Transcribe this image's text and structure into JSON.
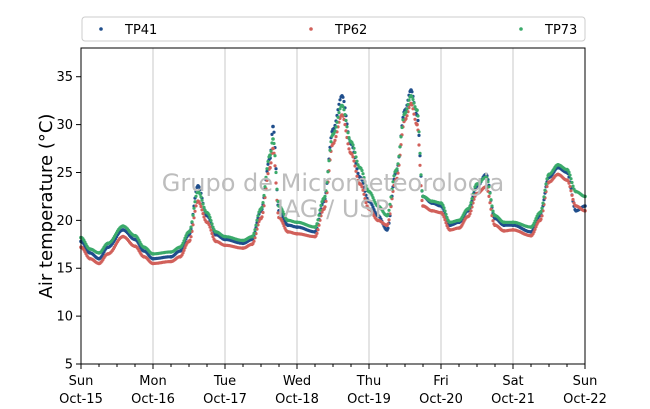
{
  "watermark": {
    "line1": "Grupo de Micrometeorologia",
    "line2": "IAG / USP"
  },
  "chart_data": {
    "type": "scatter",
    "ylabel": "Air temperature (°C)",
    "ylim": [
      5,
      38
    ],
    "yticks": [
      5,
      10,
      15,
      20,
      25,
      30,
      35
    ],
    "xlim": [
      "2017-10-15 00:00",
      "2017-10-22 00:00"
    ],
    "xticks": [
      {
        "day": "Sun",
        "date": "Oct-15"
      },
      {
        "day": "Mon",
        "date": "Oct-16"
      },
      {
        "day": "Tue",
        "date": "Oct-17"
      },
      {
        "day": "Wed",
        "date": "Oct-18"
      },
      {
        "day": "Thu",
        "date": "Oct-19"
      },
      {
        "day": "Fri",
        "date": "Oct-20"
      },
      {
        "day": "Sat",
        "date": "Oct-21"
      },
      {
        "day": "Sun",
        "date": "Oct-22"
      }
    ],
    "grid": "vertical",
    "legend": "top",
    "series": [
      {
        "name": "TP41",
        "color": "#1f4e8c",
        "points": [
          [
            "2017-10-15 00:00",
            17.8
          ],
          [
            "2017-10-15 03:00",
            16.6
          ],
          [
            "2017-10-15 06:00",
            16.0
          ],
          [
            "2017-10-15 09:00",
            17.2
          ],
          [
            "2017-10-15 14:00",
            19.0
          ],
          [
            "2017-10-15 18:00",
            18.0
          ],
          [
            "2017-10-15 21:00",
            16.8
          ],
          [
            "2017-10-16 00:00",
            16.0
          ],
          [
            "2017-10-16 06:00",
            16.2
          ],
          [
            "2017-10-16 09:00",
            16.8
          ],
          [
            "2017-10-16 12:00",
            18.5
          ],
          [
            "2017-10-16 15:00",
            23.6
          ],
          [
            "2017-10-16 18:00",
            20.5
          ],
          [
            "2017-10-16 21:00",
            18.5
          ],
          [
            "2017-10-17 00:00",
            18.0
          ],
          [
            "2017-10-17 06:00",
            17.6
          ],
          [
            "2017-10-17 09:00",
            18.0
          ],
          [
            "2017-10-17 12:00",
            21.0
          ],
          [
            "2017-10-17 15:00",
            26.5
          ],
          [
            "2017-10-17 16:00",
            29.8
          ],
          [
            "2017-10-17 18:00",
            21.0
          ],
          [
            "2017-10-17 21:00",
            19.5
          ],
          [
            "2017-10-18 00:00",
            19.3
          ],
          [
            "2017-10-18 06:00",
            18.8
          ],
          [
            "2017-10-18 09:00",
            22.0
          ],
          [
            "2017-10-18 12:00",
            29.5
          ],
          [
            "2017-10-18 15:00",
            33.0
          ],
          [
            "2017-10-18 18:00",
            28.0
          ],
          [
            "2017-10-18 21:00",
            24.5
          ],
          [
            "2017-10-19 00:00",
            22.0
          ],
          [
            "2017-10-19 03:00",
            20.5
          ],
          [
            "2017-10-19 06:00",
            19.0
          ],
          [
            "2017-10-19 09:00",
            25.0
          ],
          [
            "2017-10-19 12:00",
            31.5
          ],
          [
            "2017-10-19 14:00",
            33.6
          ],
          [
            "2017-10-19 16:00",
            31.0
          ],
          [
            "2017-10-19 18:00",
            22.5
          ],
          [
            "2017-10-19 21:00",
            21.8
          ],
          [
            "2017-10-20 00:00",
            21.5
          ],
          [
            "2017-10-20 03:00",
            19.5
          ],
          [
            "2017-10-20 06:00",
            19.8
          ],
          [
            "2017-10-20 09:00",
            21.0
          ],
          [
            "2017-10-20 12:00",
            23.5
          ],
          [
            "2017-10-20 15:00",
            24.8
          ],
          [
            "2017-10-20 18:00",
            20.2
          ],
          [
            "2017-10-20 21:00",
            19.5
          ],
          [
            "2017-10-21 00:00",
            19.5
          ],
          [
            "2017-10-21 06:00",
            18.8
          ],
          [
            "2017-10-21 09:00",
            20.5
          ],
          [
            "2017-10-21 12:00",
            24.5
          ],
          [
            "2017-10-21 15:00",
            25.5
          ],
          [
            "2017-10-21 18:00",
            25.0
          ],
          [
            "2017-10-21 21:00",
            21.0
          ],
          [
            "2017-10-22 00:00",
            21.5
          ]
        ]
      },
      {
        "name": "TP62",
        "color": "#d1605a",
        "points": [
          [
            "2017-10-15 00:00",
            17.2
          ],
          [
            "2017-10-15 03:00",
            16.0
          ],
          [
            "2017-10-15 06:00",
            15.5
          ],
          [
            "2017-10-15 09:00",
            16.5
          ],
          [
            "2017-10-15 14:00",
            18.3
          ],
          [
            "2017-10-15 18:00",
            17.3
          ],
          [
            "2017-10-15 21:00",
            16.2
          ],
          [
            "2017-10-16 00:00",
            15.5
          ],
          [
            "2017-10-16 06:00",
            15.7
          ],
          [
            "2017-10-16 09:00",
            16.2
          ],
          [
            "2017-10-16 12:00",
            17.8
          ],
          [
            "2017-10-16 15:00",
            22.0
          ],
          [
            "2017-10-16 18:00",
            19.8
          ],
          [
            "2017-10-16 21:00",
            17.8
          ],
          [
            "2017-10-17 00:00",
            17.4
          ],
          [
            "2017-10-17 06:00",
            17.1
          ],
          [
            "2017-10-17 09:00",
            17.5
          ],
          [
            "2017-10-17 12:00",
            20.2
          ],
          [
            "2017-10-17 15:00",
            25.5
          ],
          [
            "2017-10-17 16:00",
            27.5
          ],
          [
            "2017-10-17 18:00",
            20.3
          ],
          [
            "2017-10-17 21:00",
            18.8
          ],
          [
            "2017-10-18 00:00",
            18.6
          ],
          [
            "2017-10-18 06:00",
            18.3
          ],
          [
            "2017-10-18 09:00",
            21.2
          ],
          [
            "2017-10-18 12:00",
            28.0
          ],
          [
            "2017-10-18 15:00",
            31.0
          ],
          [
            "2017-10-18 18:00",
            27.0
          ],
          [
            "2017-10-18 21:00",
            23.8
          ],
          [
            "2017-10-19 00:00",
            21.2
          ],
          [
            "2017-10-19 03:00",
            20.0
          ],
          [
            "2017-10-19 06:00",
            19.5
          ],
          [
            "2017-10-19 09:00",
            24.2
          ],
          [
            "2017-10-19 12:00",
            30.5
          ],
          [
            "2017-10-19 14:00",
            32.2
          ],
          [
            "2017-10-19 16:00",
            30.0
          ],
          [
            "2017-10-19 18:00",
            21.5
          ],
          [
            "2017-10-19 21:00",
            21.0
          ],
          [
            "2017-10-20 00:00",
            20.8
          ],
          [
            "2017-10-20 03:00",
            19.0
          ],
          [
            "2017-10-20 06:00",
            19.2
          ],
          [
            "2017-10-20 09:00",
            20.4
          ],
          [
            "2017-10-20 12:00",
            22.8
          ],
          [
            "2017-10-20 15:00",
            23.5
          ],
          [
            "2017-10-20 18:00",
            19.5
          ],
          [
            "2017-10-20 21:00",
            18.9
          ],
          [
            "2017-10-21 00:00",
            19.0
          ],
          [
            "2017-10-21 06:00",
            18.4
          ],
          [
            "2017-10-21 09:00",
            20.0
          ],
          [
            "2017-10-21 12:00",
            24.0
          ],
          [
            "2017-10-21 15:00",
            24.8
          ],
          [
            "2017-10-21 18:00",
            24.2
          ],
          [
            "2017-10-21 21:00",
            21.5
          ],
          [
            "2017-10-22 00:00",
            21.0
          ]
        ]
      },
      {
        "name": "TP73",
        "color": "#3aaa6a",
        "points": [
          [
            "2017-10-15 00:00",
            18.2
          ],
          [
            "2017-10-15 03:00",
            17.0
          ],
          [
            "2017-10-15 06:00",
            16.6
          ],
          [
            "2017-10-15 09:00",
            17.6
          ],
          [
            "2017-10-15 14:00",
            19.4
          ],
          [
            "2017-10-15 18:00",
            18.4
          ],
          [
            "2017-10-15 21:00",
            17.2
          ],
          [
            "2017-10-16 00:00",
            16.5
          ],
          [
            "2017-10-16 06:00",
            16.7
          ],
          [
            "2017-10-16 09:00",
            17.2
          ],
          [
            "2017-10-16 12:00",
            18.8
          ],
          [
            "2017-10-16 15:00",
            23.0
          ],
          [
            "2017-10-16 18:00",
            20.8
          ],
          [
            "2017-10-16 21:00",
            18.8
          ],
          [
            "2017-10-17 00:00",
            18.3
          ],
          [
            "2017-10-17 06:00",
            17.9
          ],
          [
            "2017-10-17 09:00",
            18.3
          ],
          [
            "2017-10-17 12:00",
            21.2
          ],
          [
            "2017-10-17 15:00",
            26.8
          ],
          [
            "2017-10-17 16:00",
            28.5
          ],
          [
            "2017-10-17 18:00",
            21.5
          ],
          [
            "2017-10-17 21:00",
            20.0
          ],
          [
            "2017-10-18 00:00",
            19.8
          ],
          [
            "2017-10-18 06:00",
            19.3
          ],
          [
            "2017-10-18 09:00",
            22.3
          ],
          [
            "2017-10-18 12:00",
            29.0
          ],
          [
            "2017-10-18 15:00",
            32.0
          ],
          [
            "2017-10-18 18:00",
            28.2
          ],
          [
            "2017-10-18 21:00",
            25.5
          ],
          [
            "2017-10-19 00:00",
            23.0
          ],
          [
            "2017-10-19 03:00",
            21.5
          ],
          [
            "2017-10-19 06:00",
            20.5
          ],
          [
            "2017-10-19 09:00",
            25.2
          ],
          [
            "2017-10-19 12:00",
            31.2
          ],
          [
            "2017-10-19 14:00",
            33.0
          ],
          [
            "2017-10-19 16:00",
            31.5
          ],
          [
            "2017-10-19 18:00",
            22.5
          ],
          [
            "2017-10-19 21:00",
            22.0
          ],
          [
            "2017-10-20 00:00",
            21.8
          ],
          [
            "2017-10-20 03:00",
            19.8
          ],
          [
            "2017-10-20 06:00",
            20.0
          ],
          [
            "2017-10-20 09:00",
            21.2
          ],
          [
            "2017-10-20 12:00",
            23.8
          ],
          [
            "2017-10-20 15:00",
            24.5
          ],
          [
            "2017-10-20 18:00",
            20.5
          ],
          [
            "2017-10-20 21:00",
            19.8
          ],
          [
            "2017-10-21 00:00",
            19.8
          ],
          [
            "2017-10-21 06:00",
            19.3
          ],
          [
            "2017-10-21 09:00",
            20.8
          ],
          [
            "2017-10-21 12:00",
            24.8
          ],
          [
            "2017-10-21 15:00",
            25.8
          ],
          [
            "2017-10-21 18:00",
            25.3
          ],
          [
            "2017-10-21 21:00",
            23.0
          ],
          [
            "2017-10-22 00:00",
            22.5
          ]
        ]
      }
    ]
  }
}
